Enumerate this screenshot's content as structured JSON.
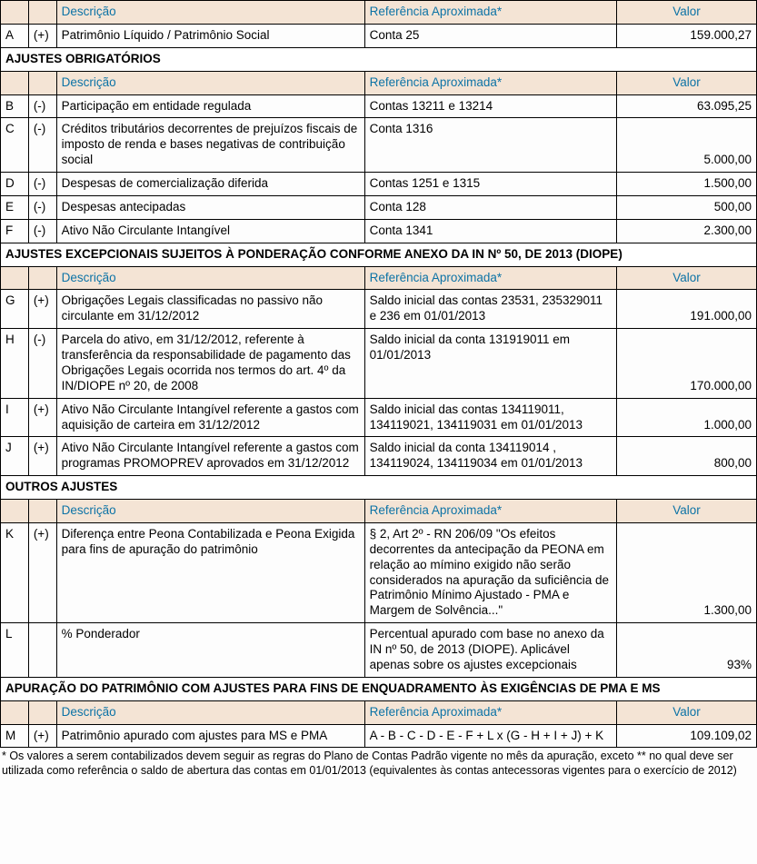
{
  "headers": {
    "descricao": "Descrição",
    "referencia": "Referência Aproximada*",
    "valor": "Valor"
  },
  "sections": {
    "s1": "AJUSTES OBRIGATÓRIOS",
    "s2": "AJUSTES EXCEPCIONAIS SUJEITOS À PONDERAÇÃO CONFORME ANEXO DA  IN Nº 50, DE 2013 (DIOPE)",
    "s3": "OUTROS AJUSTES",
    "s4": "APURAÇÃO DO PATRIMÔNIO COM AJUSTES PARA FINS DE ENQUADRAMENTO ÀS EXIGÊNCIAS DE PMA E MS"
  },
  "rows": {
    "A": {
      "letter": "A",
      "sign": "(+)",
      "desc": "Patrimônio Líquido / Patrimônio Social",
      "ref": "Conta 25",
      "val": "159.000,27"
    },
    "B": {
      "letter": "B",
      "sign": "(-)",
      "desc": "Participação em entidade regulada",
      "ref": "Contas 13211 e 13214",
      "val": "63.095,25"
    },
    "C": {
      "letter": "C",
      "sign": "(-)",
      "desc": "Créditos tributários decorrentes de prejuízos fiscais de imposto de renda e bases negativas de contribuição social",
      "ref": "Conta 1316",
      "val": "5.000,00"
    },
    "D": {
      "letter": "D",
      "sign": "(-)",
      "desc": "Despesas de comercialização diferida",
      "ref": "Contas 1251 e 1315",
      "val": "1.500,00"
    },
    "E": {
      "letter": "E",
      "sign": "(-)",
      "desc": "Despesas antecipadas",
      "ref": "Conta 128",
      "val": "500,00"
    },
    "F": {
      "letter": "F",
      "sign": "(-)",
      "desc": "Ativo Não Circulante Intangível",
      "ref": "Conta 1341",
      "val": "2.300,00"
    },
    "G": {
      "letter": "G",
      "sign": "(+)",
      "desc": "Obrigações Legais classificadas no passivo não circulante em 31/12/2012",
      "ref": "Saldo inicial das contas 23531, 235329011 e 236 em 01/01/2013",
      "val": "191.000,00"
    },
    "H": {
      "letter": "H",
      "sign": "(-)",
      "desc": "Parcela do ativo, em 31/12/2012, referente à transferência da responsabilidade de pagamento das Obrigações Legais ocorrida nos termos do art. 4º da IN/DIOPE nº 20, de 2008",
      "ref": "Saldo inicial da conta 131919011 em 01/01/2013",
      "val": "170.000,00"
    },
    "I": {
      "letter": "I",
      "sign": "(+)",
      "desc": "Ativo Não Circulante Intangível referente a gastos com aquisição de carteira em 31/12/2012",
      "ref": "Saldo inicial das contas 134119011, 134119021, 134119031 em 01/01/2013",
      "val": "1.000,00"
    },
    "J": {
      "letter": "J",
      "sign": "(+)",
      "desc": "Ativo Não Circulante Intangível referente a gastos com programas PROMOPREV aprovados em 31/12/2012",
      "ref": "Saldo inicial da conta 134119014 , 134119024, 134119034 em 01/01/2013",
      "val": "800,00"
    },
    "K": {
      "letter": "K",
      "sign": "(+)",
      "desc": "Diferença entre Peona Contabilizada e Peona Exigida para fins de apuração do patrimônio",
      "ref": "§ 2, Art 2º - RN 206/09 \"Os efeitos decorrentes da antecipação da PEONA em relação ao mímino exigido não serão considerados na apuração da suficiência de Patrimônio Mínimo Ajustado - PMA e Margem de Solvência...\"",
      "val": "1.300,00"
    },
    "L": {
      "letter": "L",
      "sign": "",
      "desc": "% Ponderador",
      "ref": "Percentual apurado com base no anexo da IN nº 50, de 2013 (DIOPE). Aplicável apenas sobre os ajustes excepcionais",
      "val": "93%"
    },
    "M": {
      "letter": "M",
      "sign": "(+)",
      "desc": "Patrimônio apurado com ajustes para MS e PMA",
      "ref": "A - B - C - D - E - F + L x (G - H + I + J) + K",
      "val": "109.109,02"
    }
  },
  "footnote": "* Os valores a serem contabilizados devem seguir as regras do Plano de Contas Padrão vigente no mês da apuração, exceto ** no qual deve ser utilizada como referência o saldo de abertura das contas em 01/01/2013 (equivalentes às contas antecessoras vigentes para o exercício de 2012)",
  "colors": {
    "header_bg": "#f4e4d5",
    "header_text": "#0d73a6",
    "border": "#000000"
  }
}
